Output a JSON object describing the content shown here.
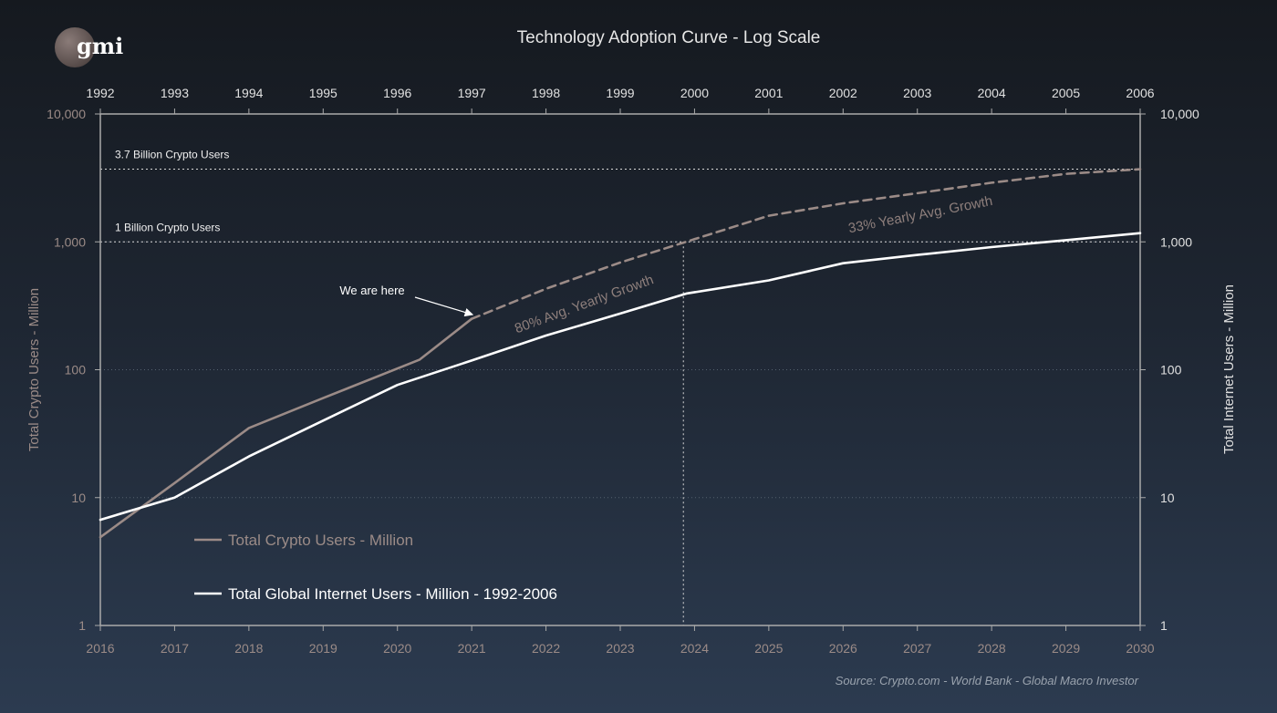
{
  "logo_text": "gmi",
  "chart_data": {
    "type": "line",
    "title": "Technology Adoption Curve - Log Scale",
    "scale": "log",
    "grid": true,
    "legend_position": "bottom-left",
    "colors": {
      "crypto": "#9b8b87",
      "internet": "#ffffff",
      "axis": "#aaaaaa",
      "bottom_tick": "#9b8b87",
      "top_tick": "#e0e0e0",
      "annotation": "#8e7f7c"
    },
    "bottom_axis": {
      "ticks": [
        "2016",
        "2017",
        "2018",
        "2019",
        "2020",
        "2021",
        "2022",
        "2023",
        "2024",
        "2025",
        "2026",
        "2027",
        "2028",
        "2029",
        "2030"
      ],
      "range": [
        2016,
        2030
      ]
    },
    "top_axis": {
      "ticks": [
        "1992",
        "1993",
        "1994",
        "1995",
        "1996",
        "1997",
        "1998",
        "1999",
        "2000",
        "2001",
        "2002",
        "2003",
        "2004",
        "2005",
        "2006"
      ],
      "range": [
        1992,
        2006
      ]
    },
    "left_axis": {
      "label": "Total Crypto Users - Million",
      "ticks": [
        "1",
        "10",
        "100",
        "1,000",
        "10,000"
      ],
      "range": [
        1,
        10000
      ]
    },
    "right_axis": {
      "label": "Total Internet Users - Million",
      "ticks": [
        "1",
        "10",
        "100",
        "1,000",
        "10,000"
      ],
      "range": [
        1,
        10000
      ]
    },
    "series": [
      {
        "name": "Total Crypto Users - Million",
        "axis": "bottom",
        "points": [
          [
            2016,
            4.9
          ],
          [
            2017,
            13
          ],
          [
            2018,
            35
          ],
          [
            2019,
            60
          ],
          [
            2020.3,
            120
          ],
          [
            2021,
            250
          ]
        ]
      },
      {
        "name": "Total Crypto Users - Million",
        "axis": "bottom",
        "projection": true,
        "points": [
          [
            2021,
            250
          ],
          [
            2022,
            430
          ],
          [
            2023,
            690
          ],
          [
            2024,
            1050
          ],
          [
            2025,
            1600
          ],
          [
            2026,
            2000
          ],
          [
            2027,
            2400
          ],
          [
            2028,
            2900
          ],
          [
            2029,
            3400
          ],
          [
            2030,
            3700
          ]
        ]
      },
      {
        "name": "Total Global Internet Users - Million - 1992-2006",
        "axis": "top",
        "points": [
          [
            1992,
            6.7
          ],
          [
            1993,
            10
          ],
          [
            1994,
            21
          ],
          [
            1995,
            40
          ],
          [
            1996,
            76
          ],
          [
            1997,
            118
          ],
          [
            1998,
            185
          ],
          [
            1999,
            275
          ],
          [
            1999.9,
            395
          ],
          [
            2001,
            500
          ],
          [
            2002,
            680
          ],
          [
            2003,
            790
          ],
          [
            2004,
            910
          ],
          [
            2005,
            1030
          ],
          [
            2006,
            1170
          ]
        ]
      }
    ],
    "reference_lines": [
      {
        "label": "3.7 Billion Crypto Users",
        "value": 3700
      },
      {
        "label": "1 Billion Crypto Users",
        "value": 1000
      }
    ],
    "vertical_marker": {
      "x": 2023.85
    },
    "annotations": {
      "we_are_here": "We are here",
      "growth_80": "80% Avg. Yearly Growth",
      "growth_33": "33% Yearly Avg. Growth"
    },
    "legend": {
      "crypto": "Total Crypto Users - Million",
      "internet": "Total Global Internet Users - Million - 1992-2006"
    },
    "source": "Source:   Crypto.com - World Bank - Global Macro Investor"
  }
}
